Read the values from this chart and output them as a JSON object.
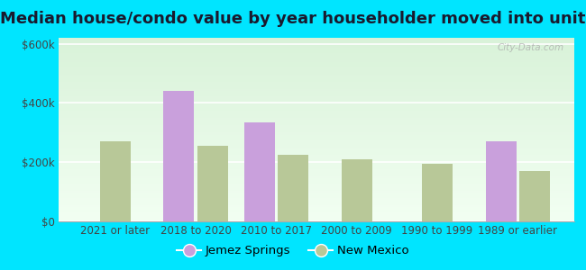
{
  "title": "Median house/condo value by year householder moved into unit",
  "categories": [
    "2021 or later",
    "2018 to 2020",
    "2010 to 2017",
    "2000 to 2009",
    "1990 to 1999",
    "1989 or earlier"
  ],
  "jemez_springs": [
    0,
    440000,
    335000,
    0,
    0,
    270000
  ],
  "new_mexico": [
    270000,
    255000,
    225000,
    210000,
    195000,
    170000
  ],
  "jemez_color": "#c9a0dc",
  "nm_color": "#b8c898",
  "ylim": [
    0,
    620000
  ],
  "yticks": [
    0,
    200000,
    400000,
    600000
  ],
  "ytick_labels": [
    "$0",
    "$200k",
    "$400k",
    "$600k"
  ],
  "plot_bg_top": "#d8eed8",
  "plot_bg_bottom": "#f0faf0",
  "outer_color": "#00e5ff",
  "bar_width": 0.38,
  "title_fontsize": 13,
  "tick_fontsize": 8.5,
  "legend_fontsize": 9.5,
  "watermark": "City-Data.com"
}
